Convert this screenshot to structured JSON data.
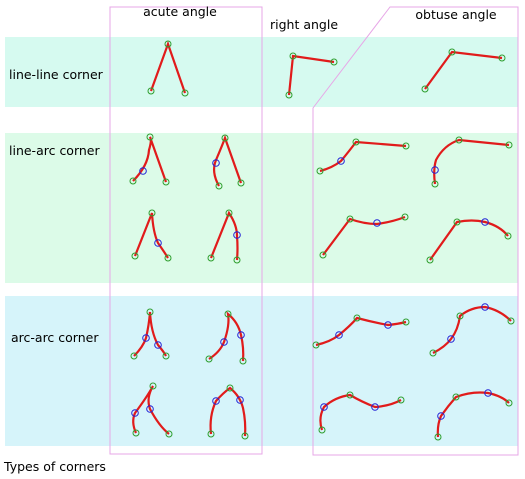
{
  "columns": {
    "acute": "acute angle",
    "right": "right angle",
    "obtuse": "obtuse angle"
  },
  "rows": {
    "line_line": "line-line corner",
    "line_arc": "line-arc corner",
    "arc_arc": "arc-arc corner"
  },
  "caption": "Types of corners",
  "colors": {
    "band_line_line": "#d6faf0",
    "band_line_arc": "#dcfbe8",
    "band_arc_arc": "#d6f4fa",
    "curve": "#e11b1b",
    "endpoint_marker": "#2e9e2e",
    "arc_midpoint_marker": "#2323d6",
    "column_frame": "#e7a7e7"
  }
}
